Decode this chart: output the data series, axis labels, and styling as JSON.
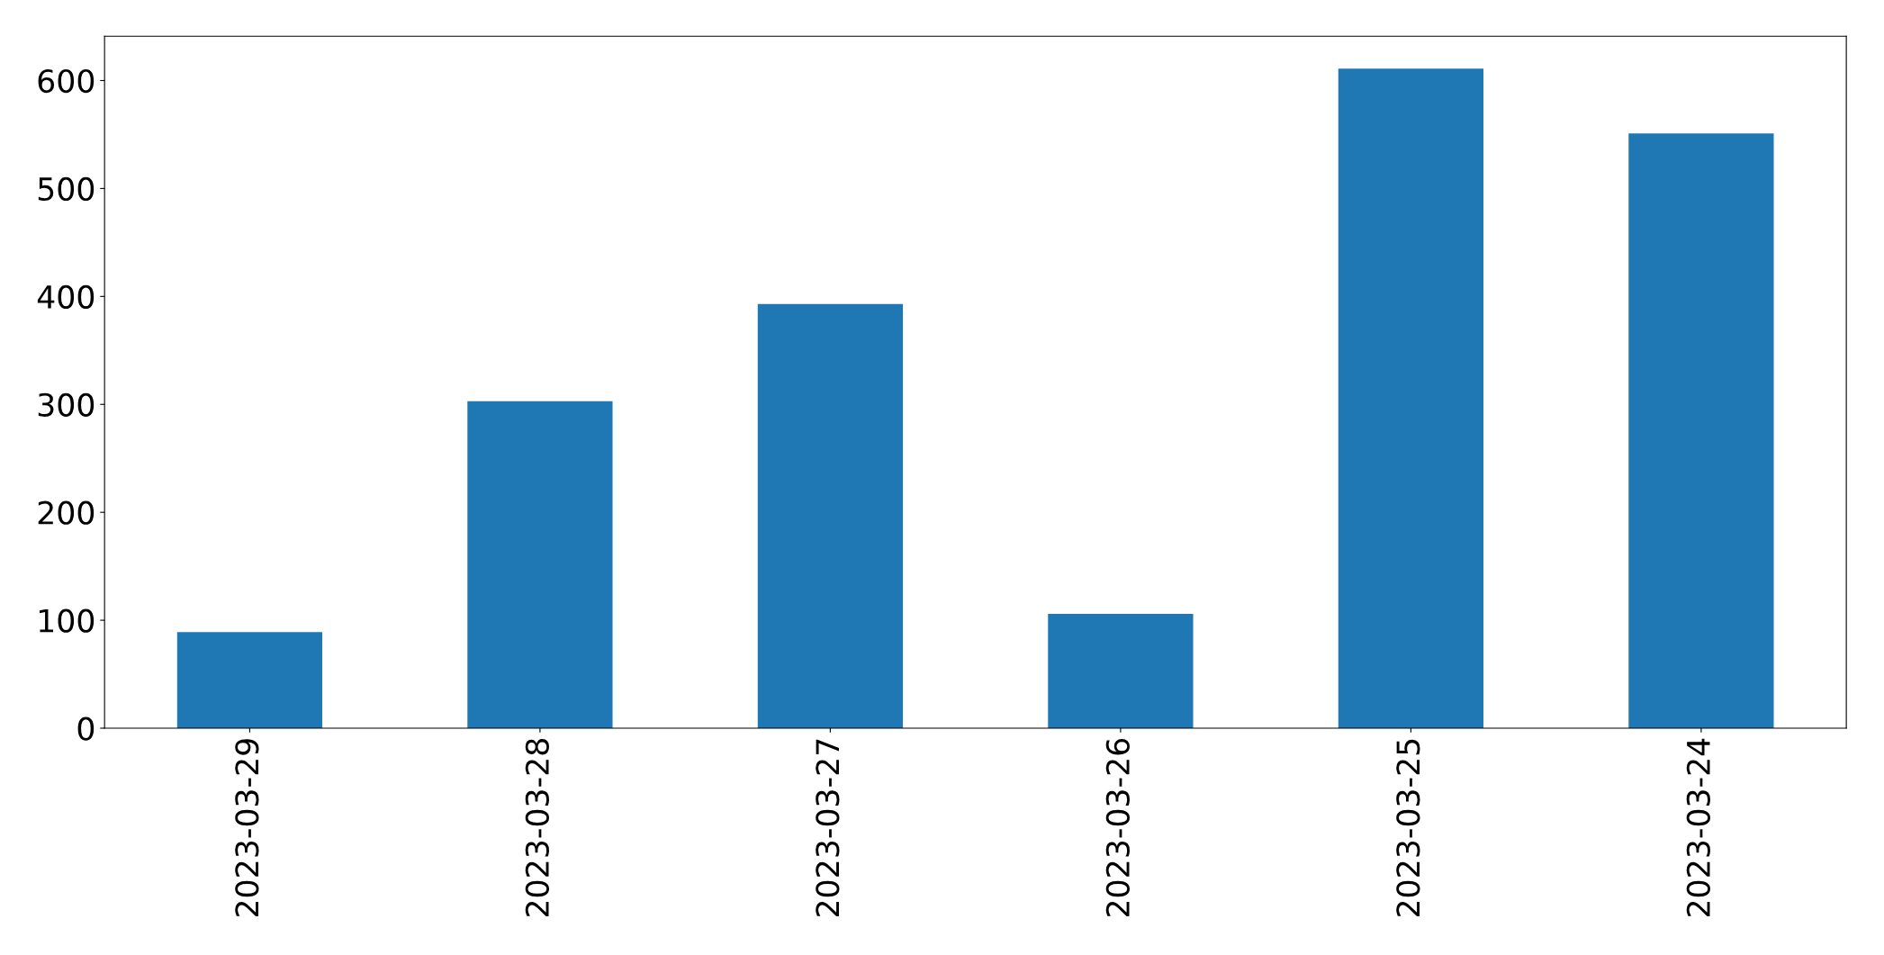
{
  "chart_data": {
    "type": "bar",
    "categories": [
      "2023-03-29",
      "2023-03-28",
      "2023-03-27",
      "2023-03-26",
      "2023-03-25",
      "2023-03-24"
    ],
    "values": [
      89,
      303,
      393,
      106,
      611,
      551
    ],
    "color": "#1f77b4",
    "ylim": [
      0,
      641
    ],
    "yticks": [
      0,
      100,
      200,
      300,
      400,
      500,
      600
    ],
    "grid": false
  }
}
